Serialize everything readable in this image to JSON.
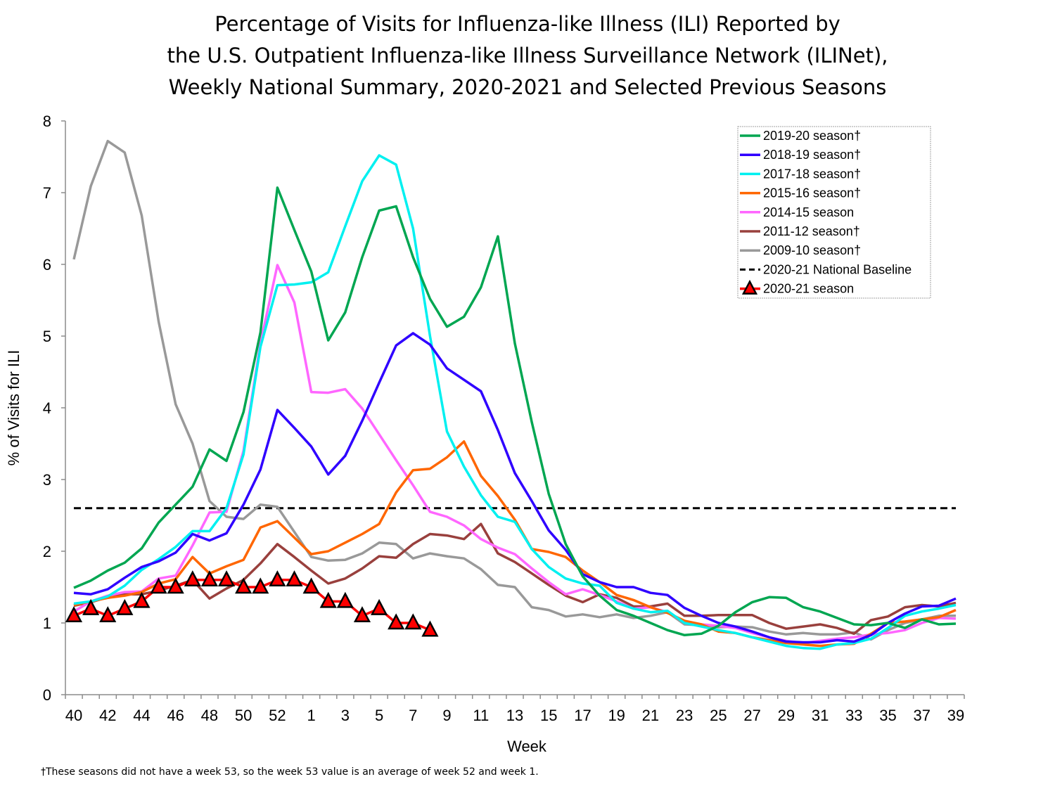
{
  "title_lines": [
    "Percentage of Visits for Influenza-like Illness (ILI) Reported by",
    "the U.S. Outpatient Influenza-like Illness Surveillance Network (ILINet),",
    "Weekly National Summary, 2020-2021 and Selected Previous Seasons"
  ],
  "footnote": "†These seasons did not have a week 53, so the week 53 value is an average of week 52 and week 1.",
  "chart_data": {
    "type": "line",
    "title": "Percentage of Visits for Influenza-like Illness (ILI) Reported by the U.S. Outpatient Influenza-like Illness Surveillance Network (ILINet), Weekly National Summary, 2020-2021 and Selected Previous Seasons",
    "xlabel": "Week",
    "ylabel": "% of Visits for ILI",
    "ylim": [
      0,
      8
    ],
    "yticks": [
      0,
      1,
      2,
      3,
      4,
      5,
      6,
      7,
      8
    ],
    "x": [
      40,
      41,
      42,
      43,
      44,
      45,
      46,
      47,
      48,
      49,
      50,
      51,
      52,
      53,
      1,
      2,
      3,
      4,
      5,
      6,
      7,
      8,
      9,
      10,
      11,
      12,
      13,
      14,
      15,
      16,
      17,
      18,
      19,
      20,
      21,
      22,
      23,
      24,
      25,
      26,
      27,
      28,
      29,
      30,
      31,
      32,
      33,
      34,
      35,
      36,
      37,
      38,
      39
    ],
    "xtick_labels": [
      "40",
      "42",
      "44",
      "46",
      "48",
      "50",
      "52",
      "1",
      "3",
      "5",
      "7",
      "9",
      "11",
      "13",
      "15",
      "17",
      "19",
      "21",
      "23",
      "25",
      "27",
      "29",
      "31",
      "33",
      "35",
      "37",
      "39"
    ],
    "grid": false,
    "legend_position": "top-right",
    "baseline": {
      "name": "2020-21 National Baseline",
      "value": 2.6,
      "color": "#000000",
      "style": "dashed"
    },
    "series": [
      {
        "name": "2019-20 season†",
        "color": "#00a651",
        "values": [
          1.49,
          1.59,
          1.73,
          1.84,
          2.04,
          2.4,
          2.65,
          2.9,
          3.42,
          3.26,
          3.94,
          5.05,
          7.07,
          6.48,
          5.9,
          4.94,
          5.33,
          6.1,
          6.75,
          6.81,
          6.1,
          5.52,
          5.13,
          5.27,
          5.68,
          6.39,
          4.9,
          3.8,
          2.8,
          2.1,
          1.65,
          1.38,
          1.18,
          1.1,
          1.0,
          0.9,
          0.83,
          0.85,
          0.96,
          1.15,
          1.29,
          1.36,
          1.35,
          1.22,
          1.16,
          1.07,
          0.98,
          0.97,
          1.0,
          0.93,
          1.05,
          0.98,
          0.99
        ]
      },
      {
        "name": "2018-19 season†",
        "color": "#2f00ff",
        "values": [
          1.42,
          1.4,
          1.47,
          1.63,
          1.78,
          1.86,
          1.98,
          2.24,
          2.15,
          2.25,
          2.65,
          3.14,
          3.97,
          3.72,
          3.46,
          3.07,
          3.33,
          3.82,
          4.35,
          4.87,
          5.04,
          4.88,
          4.55,
          4.39,
          4.23,
          3.69,
          3.09,
          2.7,
          2.29,
          2.02,
          1.68,
          1.57,
          1.5,
          1.5,
          1.42,
          1.39,
          1.21,
          1.1,
          1.0,
          0.95,
          0.88,
          0.8,
          0.74,
          0.73,
          0.73,
          0.76,
          0.74,
          0.83,
          1.0,
          1.13,
          1.23,
          1.24,
          1.34
        ]
      },
      {
        "name": "2017-18 season†",
        "color": "#00f0f0",
        "values": [
          1.27,
          1.3,
          1.37,
          1.52,
          1.74,
          1.89,
          2.06,
          2.28,
          2.28,
          2.6,
          3.35,
          4.85,
          5.71,
          5.72,
          5.75,
          5.89,
          6.53,
          7.16,
          7.52,
          7.39,
          6.5,
          5.0,
          3.67,
          3.18,
          2.78,
          2.48,
          2.41,
          2.03,
          1.78,
          1.62,
          1.55,
          1.52,
          1.28,
          1.2,
          1.15,
          1.17,
          1.0,
          0.95,
          0.9,
          0.86,
          0.8,
          0.74,
          0.68,
          0.65,
          0.64,
          0.7,
          0.72,
          0.78,
          0.93,
          1.1,
          1.16,
          1.2,
          1.25
        ]
      },
      {
        "name": "2015-16 season†",
        "color": "#ff6600",
        "values": [
          1.25,
          1.3,
          1.35,
          1.38,
          1.43,
          1.55,
          1.61,
          1.92,
          1.69,
          1.79,
          1.88,
          2.33,
          2.42,
          2.19,
          1.96,
          2.0,
          2.12,
          2.24,
          2.38,
          2.82,
          3.13,
          3.15,
          3.31,
          3.53,
          3.05,
          2.77,
          2.44,
          2.03,
          1.99,
          1.92,
          1.73,
          1.57,
          1.39,
          1.32,
          1.22,
          1.14,
          1.03,
          0.98,
          0.88,
          0.86,
          0.8,
          0.76,
          0.72,
          0.7,
          0.68,
          0.7,
          0.71,
          0.85,
          1.0,
          1.02,
          1.05,
          1.08,
          1.18
        ]
      },
      {
        "name": "2014-15 season",
        "color": "#ff66ff",
        "values": [
          1.16,
          1.3,
          1.38,
          1.43,
          1.44,
          1.62,
          1.66,
          2.08,
          2.54,
          2.55,
          3.4,
          4.9,
          5.99,
          5.47,
          4.22,
          4.21,
          4.26,
          3.99,
          3.63,
          3.27,
          2.92,
          2.55,
          2.48,
          2.36,
          2.17,
          2.05,
          1.96,
          1.76,
          1.57,
          1.4,
          1.47,
          1.39,
          1.3,
          1.2,
          1.22,
          1.15,
          1.02,
          0.98,
          0.96,
          0.93,
          0.86,
          0.8,
          0.75,
          0.72,
          0.75,
          0.78,
          0.8,
          0.84,
          0.86,
          0.9,
          1.0,
          1.07,
          1.06
        ]
      },
      {
        "name": "2011-12 season†",
        "color": "#99403d",
        "values": [
          1.24,
          1.29,
          1.36,
          1.4,
          1.4,
          1.45,
          1.52,
          1.6,
          1.34,
          1.48,
          1.6,
          1.83,
          2.1,
          1.92,
          1.73,
          1.55,
          1.62,
          1.76,
          1.93,
          1.91,
          2.1,
          2.24,
          2.22,
          2.17,
          2.38,
          1.97,
          1.85,
          1.69,
          1.53,
          1.38,
          1.29,
          1.4,
          1.35,
          1.23,
          1.23,
          1.27,
          1.1,
          1.1,
          1.11,
          1.11,
          1.11,
          1.0,
          0.92,
          0.95,
          0.98,
          0.93,
          0.85,
          1.04,
          1.09,
          1.22,
          1.25,
          1.23,
          1.28
        ]
      },
      {
        "name": "2009-10 season†",
        "color": "#999999",
        "values": [
          6.07,
          7.09,
          7.72,
          7.56,
          6.68,
          5.2,
          4.05,
          3.5,
          2.7,
          2.48,
          2.45,
          2.65,
          2.62,
          2.27,
          1.92,
          1.87,
          1.88,
          1.97,
          2.12,
          2.1,
          1.9,
          1.97,
          1.93,
          1.9,
          1.75,
          1.53,
          1.5,
          1.22,
          1.18,
          1.09,
          1.12,
          1.08,
          1.12,
          1.07,
          1.1,
          1.15,
          0.98,
          0.97,
          0.94,
          0.95,
          0.94,
          0.88,
          0.84,
          0.86,
          0.84,
          0.84,
          0.87,
          0.77,
          0.9,
          1.0,
          1.05,
          1.1,
          1.1
        ]
      },
      {
        "name": "2020-21 season",
        "color": "#ff0000",
        "marker": "triangle",
        "values": [
          1.1,
          1.2,
          1.1,
          1.2,
          1.3,
          1.5,
          1.5,
          1.6,
          1.6,
          1.6,
          1.5,
          1.5,
          1.6,
          1.6,
          1.5,
          1.3,
          1.3,
          1.1,
          1.2,
          1.0,
          1.0,
          0.9
        ]
      }
    ],
    "legend": [
      "2019-20 season†",
      "2018-19 season†",
      "2017-18 season†",
      "2015-16 season†",
      "2014-15 season",
      "2011-12 season†",
      "2009-10 season†",
      "2020-21 National Baseline",
      "2020-21 season"
    ]
  }
}
